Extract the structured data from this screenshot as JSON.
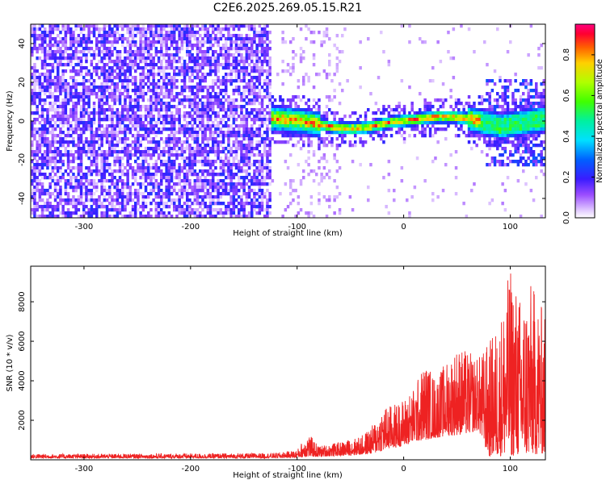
{
  "title": "C2E6.2025.269.05.15.R21",
  "chart_data": [
    {
      "type": "heatmap",
      "name": "spectrogram",
      "xlabel": "Height of straight line (km)",
      "ylabel": "Frequency (Hz)",
      "xlim": [
        -350,
        133
      ],
      "ylim": [
        -50,
        50
      ],
      "xticks": [
        -300,
        -200,
        -100,
        0,
        100
      ],
      "yticks": [
        -40,
        -20,
        0,
        20,
        40
      ],
      "colorbar": {
        "label": "Normalized spectral amplitude",
        "range": [
          0,
          0.95
        ],
        "ticks": [
          0.0,
          0.2,
          0.4,
          0.6,
          0.8
        ]
      },
      "ridge": {
        "description_points_x": [
          -120,
          -100,
          -80,
          -60,
          -45,
          -30,
          -15,
          0,
          15,
          30,
          45,
          60,
          75,
          90,
          110,
          133
        ],
        "frequency_hz": [
          2,
          1,
          -1,
          -3,
          -3,
          -2,
          0,
          1,
          2,
          3,
          3,
          2,
          0,
          -2,
          0,
          2
        ]
      }
    },
    {
      "type": "line",
      "name": "snr",
      "xlabel": "Height of straight line (km)",
      "ylabel": "SNR (10 * v/v)",
      "xlim": [
        -350,
        133
      ],
      "ylim": [
        0,
        9800
      ],
      "xticks": [
        -300,
        -200,
        -100,
        0,
        100
      ],
      "yticks": [
        2000,
        4000,
        6000,
        8000
      ],
      "color": "#ee2222",
      "envelope": {
        "x": [
          -350,
          -300,
          -200,
          -150,
          -120,
          -100,
          -90,
          -80,
          -60,
          -40,
          -30,
          -20,
          -10,
          0,
          10,
          20,
          30,
          40,
          50,
          60,
          70,
          80,
          90,
          100,
          110,
          120,
          133
        ],
        "upper": [
          300,
          300,
          320,
          330,
          350,
          500,
          1400,
          700,
          900,
          1200,
          1700,
          2700,
          2800,
          3100,
          3700,
          5000,
          4200,
          5000,
          5800,
          5500,
          5200,
          6000,
          7100,
          9800,
          8200,
          9000,
          7400
        ],
        "lower": [
          80,
          80,
          80,
          80,
          90,
          100,
          150,
          150,
          200,
          250,
          300,
          450,
          600,
          700,
          900,
          1000,
          1100,
          1200,
          1250,
          1300,
          1500,
          150,
          200,
          200,
          200,
          250,
          300
        ]
      }
    }
  ]
}
